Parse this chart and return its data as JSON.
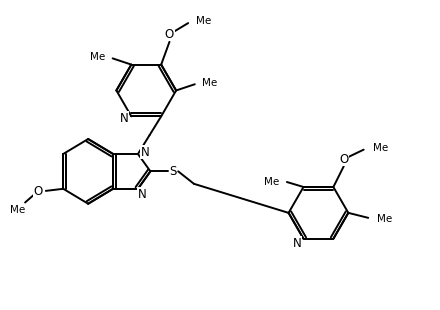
{
  "background_color": "#ffffff",
  "line_color": "#000000",
  "line_width": 1.4,
  "font_size": 8.5,
  "fig_width": 4.27,
  "fig_height": 2.96,
  "xlim": [
    0,
    10
  ],
  "ylim": [
    0,
    7
  ]
}
